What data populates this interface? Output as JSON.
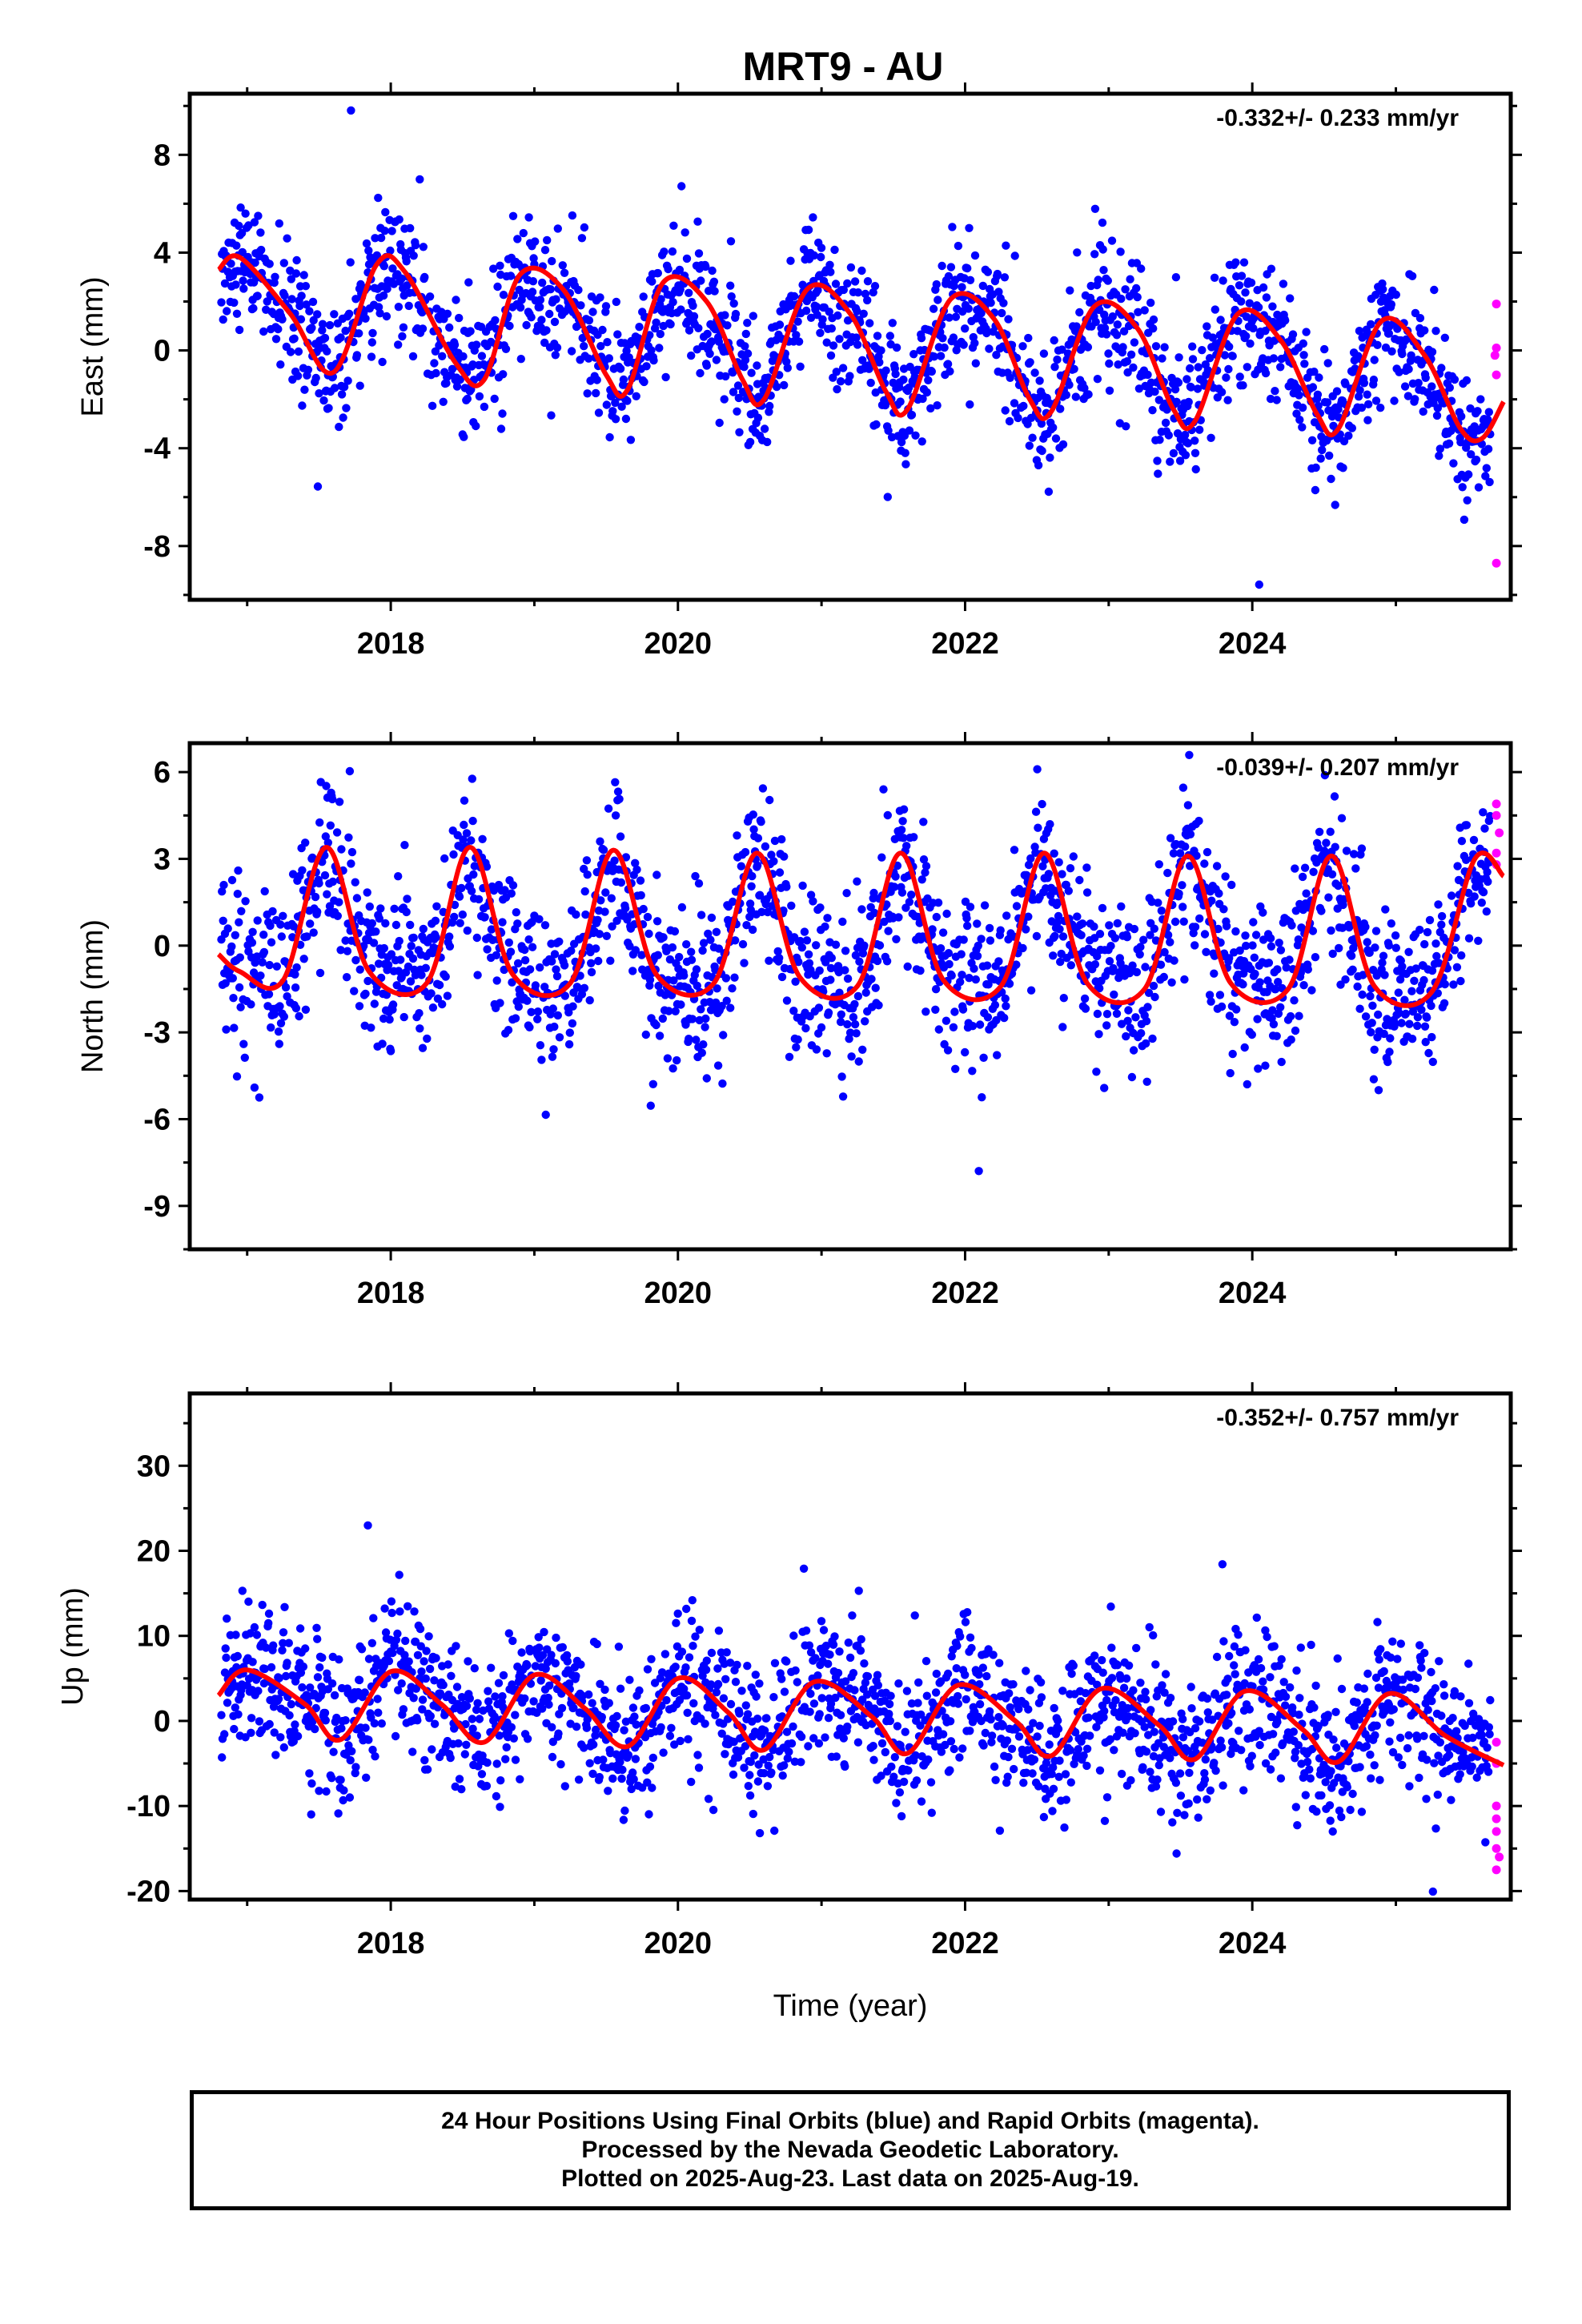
{
  "title": "MRT9 - AU",
  "colors": {
    "final": "#0000ff",
    "rapid": "#ff00ff",
    "model": "#ff0000"
  },
  "chart_data": [
    {
      "type": "scatter",
      "ylabel": "East (mm)",
      "rate_label": "-0.332+/- 0.233 mm/yr",
      "xlim": [
        2016.6,
        2025.8
      ],
      "ylim": [
        -10.2,
        10.5
      ],
      "x_ticks": [
        2018,
        2020,
        2022,
        2024
      ],
      "y_ticks": [
        -8,
        -4,
        0,
        4,
        8
      ],
      "seasonal": {
        "amplitude": 2.3,
        "phase_year": 2016.9,
        "annual_slope_offset": 3.8,
        "trend_per_year": -0.37,
        "noise": 1.2
      },
      "model_line": [
        [
          2016.8,
          3.3
        ],
        [
          2016.95,
          3.8
        ],
        [
          2017.3,
          1.5
        ],
        [
          2017.6,
          -0.9
        ],
        [
          2017.9,
          3.5
        ],
        [
          2018.1,
          3.2
        ],
        [
          2018.45,
          -0.5
        ],
        [
          2018.65,
          -1.2
        ],
        [
          2018.9,
          3.1
        ],
        [
          2019.2,
          2.5
        ],
        [
          2019.5,
          -1.0
        ],
        [
          2019.65,
          -1.6
        ],
        [
          2019.9,
          2.8
        ],
        [
          2020.2,
          2.0
        ],
        [
          2020.45,
          -1.2
        ],
        [
          2020.6,
          -2.0
        ],
        [
          2020.9,
          2.5
        ],
        [
          2021.2,
          1.5
        ],
        [
          2021.45,
          -1.7
        ],
        [
          2021.6,
          -2.4
        ],
        [
          2021.9,
          2.1
        ],
        [
          2022.2,
          1.3
        ],
        [
          2022.45,
          -2.0
        ],
        [
          2022.6,
          -2.5
        ],
        [
          2022.9,
          1.8
        ],
        [
          2023.2,
          0.9
        ],
        [
          2023.45,
          -2.4
        ],
        [
          2023.6,
          -2.9
        ],
        [
          2023.9,
          1.5
        ],
        [
          2024.2,
          0.4
        ],
        [
          2024.45,
          -2.6
        ],
        [
          2024.6,
          -3.2
        ],
        [
          2024.9,
          1.2
        ],
        [
          2025.2,
          -0.2
        ],
        [
          2025.45,
          -3.2
        ],
        [
          2025.6,
          -3.6
        ],
        [
          2025.75,
          -2.1
        ]
      ],
      "rapid_points": [
        [
          2025.7,
          1.9
        ],
        [
          2025.7,
          0.1
        ],
        [
          2025.69,
          -0.2
        ],
        [
          2025.7,
          -1.0
        ],
        [
          2025.7,
          -8.7
        ]
      ]
    },
    {
      "type": "scatter",
      "ylabel": "North (mm)",
      "rate_label": "-0.039+/- 0.207 mm/yr",
      "xlim": [
        2016.6,
        2025.8
      ],
      "ylim": [
        -10.5,
        7.0
      ],
      "x_ticks": [
        2018,
        2020,
        2022,
        2024
      ],
      "y_ticks": [
        -9,
        -6,
        -3,
        0,
        3,
        6
      ],
      "model_line": [
        [
          2016.8,
          -0.3
        ],
        [
          2016.95,
          -0.9
        ],
        [
          2017.25,
          -1.2
        ],
        [
          2017.55,
          3.4
        ],
        [
          2017.85,
          -0.9
        ],
        [
          2018.25,
          -1.3
        ],
        [
          2018.55,
          3.4
        ],
        [
          2018.85,
          -1.0
        ],
        [
          2019.25,
          -1.3
        ],
        [
          2019.55,
          3.3
        ],
        [
          2019.85,
          -1.0
        ],
        [
          2020.25,
          -1.3
        ],
        [
          2020.55,
          3.2
        ],
        [
          2020.85,
          -1.1
        ],
        [
          2021.25,
          -1.4
        ],
        [
          2021.55,
          3.2
        ],
        [
          2021.85,
          -1.2
        ],
        [
          2022.25,
          -1.4
        ],
        [
          2022.55,
          3.2
        ],
        [
          2022.85,
          -1.3
        ],
        [
          2023.25,
          -1.5
        ],
        [
          2023.55,
          3.1
        ],
        [
          2023.85,
          -1.3
        ],
        [
          2024.25,
          -1.5
        ],
        [
          2024.55,
          3.1
        ],
        [
          2024.85,
          -1.4
        ],
        [
          2025.25,
          -1.6
        ],
        [
          2025.55,
          3.0
        ],
        [
          2025.75,
          2.4
        ]
      ],
      "rapid_points": [
        [
          2025.7,
          4.9
        ],
        [
          2025.7,
          4.5
        ],
        [
          2025.72,
          3.9
        ],
        [
          2025.7,
          3.2
        ],
        [
          2025.7,
          2.8
        ]
      ]
    },
    {
      "type": "scatter",
      "ylabel": "Up (mm)",
      "xlabel": "Time (year)",
      "rate_label": "-0.352+/- 0.757 mm/yr",
      "xlim": [
        2016.6,
        2025.8
      ],
      "ylim": [
        -21.0,
        38.5
      ],
      "x_ticks": [
        2018,
        2020,
        2022,
        2024
      ],
      "y_ticks": [
        -20,
        -10,
        0,
        10,
        20,
        30
      ],
      "model_line": [
        [
          2016.8,
          3.0
        ],
        [
          2017.0,
          6.0
        ],
        [
          2017.4,
          2.0
        ],
        [
          2017.65,
          -2.2
        ],
        [
          2018.0,
          5.8
        ],
        [
          2018.35,
          2.0
        ],
        [
          2018.65,
          -2.5
        ],
        [
          2019.0,
          5.4
        ],
        [
          2019.35,
          1.5
        ],
        [
          2019.65,
          -3.0
        ],
        [
          2020.0,
          5.0
        ],
        [
          2020.35,
          1.0
        ],
        [
          2020.6,
          -3.4
        ],
        [
          2020.95,
          4.6
        ],
        [
          2021.35,
          0.5
        ],
        [
          2021.6,
          -3.8
        ],
        [
          2021.95,
          4.2
        ],
        [
          2022.35,
          0.0
        ],
        [
          2022.6,
          -4.1
        ],
        [
          2022.95,
          3.8
        ],
        [
          2023.35,
          -0.5
        ],
        [
          2023.6,
          -4.5
        ],
        [
          2023.95,
          3.5
        ],
        [
          2024.35,
          -1.0
        ],
        [
          2024.6,
          -4.8
        ],
        [
          2024.95,
          3.2
        ],
        [
          2025.35,
          -1.8
        ],
        [
          2025.75,
          -5.2
        ]
      ],
      "rapid_points": [
        [
          2025.7,
          -2.5
        ],
        [
          2025.7,
          -5.0
        ],
        [
          2025.7,
          -10.0
        ],
        [
          2025.7,
          -11.5
        ],
        [
          2025.7,
          -13.0
        ],
        [
          2025.7,
          -15.0
        ],
        [
          2025.72,
          -16.0
        ],
        [
          2025.7,
          -17.5
        ]
      ]
    }
  ],
  "footer": {
    "line1": "24 Hour Positions Using Final Orbits (blue) and Rapid Orbits (magenta).",
    "line2": "Processed by the Nevada Geodetic Laboratory.",
    "line3": "Plotted on 2025-Aug-23. Last data on 2025-Aug-19."
  }
}
